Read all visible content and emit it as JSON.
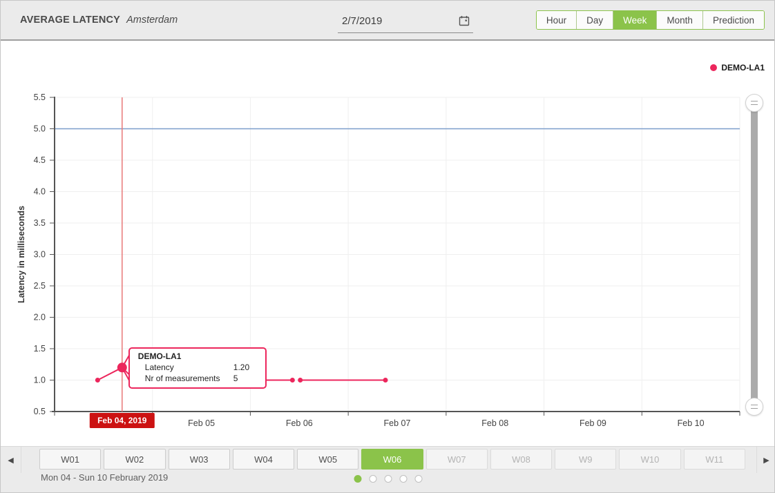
{
  "header": {
    "title": "AVERAGE LATENCY",
    "subtitle": "Amsterdam",
    "date_value": "2/7/2019",
    "range_buttons": [
      "Hour",
      "Day",
      "Week",
      "Month",
      "Prediction"
    ],
    "selected_range": "Week"
  },
  "legend": {
    "label": "DEMO-LA1",
    "marker_color": "#EC265C"
  },
  "tooltip": {
    "title": "DEMO-LA1",
    "rows": [
      {
        "label": "Latency",
        "value": "1.20"
      },
      {
        "label": "Nr of measurements",
        "value": "5"
      }
    ]
  },
  "chart_data": {
    "type": "line",
    "title": "AVERAGE LATENCY Amsterdam",
    "xlabel": "",
    "ylabel": "Latency in milliseconds",
    "ylim": [
      0.5,
      5.5
    ],
    "yticks": [
      0.5,
      1.0,
      1.5,
      2.0,
      2.5,
      3.0,
      3.5,
      4.0,
      4.5,
      5.0,
      5.5
    ],
    "x_labels": [
      "Feb 04",
      "Feb 05",
      "Feb 06",
      "Feb 07",
      "Feb 08",
      "Feb 09",
      "Feb 10"
    ],
    "x_range_days": 7,
    "grid": true,
    "legend_position": "top-right",
    "threshold_line": {
      "value": 5.0,
      "color": "#7C9DCB"
    },
    "series": [
      {
        "name": "DEMO-LA1",
        "color": "#EC265C",
        "x_unit": "days_from_Feb04",
        "segments": [
          {
            "points": [
              [
                0.44,
                1.0
              ],
              [
                0.69,
                1.2
              ],
              [
                0.82,
                1.0
              ],
              [
                2.43,
                1.0
              ]
            ]
          },
          {
            "points": [
              [
                2.51,
                1.0
              ],
              [
                3.38,
                1.0
              ]
            ]
          }
        ],
        "markers": [
          [
            0.44,
            1.0
          ],
          [
            2.43,
            1.0
          ],
          [
            2.51,
            1.0
          ],
          [
            3.38,
            1.0
          ]
        ],
        "hovered_point": {
          "x": 0.69,
          "y": 1.2,
          "latency": "1.20",
          "nr_of_measurements": "5"
        }
      }
    ],
    "crosshair": {
      "x": 0.69,
      "label": "Feb 04, 2019",
      "line_color": "#E87878",
      "label_bg": "#CC1212",
      "label_color": "#FFFFFF"
    }
  },
  "week_nav": {
    "weeks": [
      {
        "label": "W01",
        "selected": false,
        "enabled": true
      },
      {
        "label": "W02",
        "selected": false,
        "enabled": true
      },
      {
        "label": "W03",
        "selected": false,
        "enabled": true
      },
      {
        "label": "W04",
        "selected": false,
        "enabled": true
      },
      {
        "label": "W05",
        "selected": false,
        "enabled": true
      },
      {
        "label": "W06",
        "selected": true,
        "enabled": true
      },
      {
        "label": "W07",
        "selected": false,
        "enabled": false
      },
      {
        "label": "W08",
        "selected": false,
        "enabled": false
      },
      {
        "label": "W9",
        "selected": false,
        "enabled": false
      },
      {
        "label": "W10",
        "selected": false,
        "enabled": false
      },
      {
        "label": "W11",
        "selected": false,
        "enabled": false
      }
    ],
    "range_label": "Mon 04 - Sun 10 February 2019",
    "pagination": {
      "count": 5,
      "active_index": 0
    }
  },
  "icons": {
    "prev_arrow": "◀",
    "next_arrow": "▶"
  },
  "colors": {
    "accent_green": "#8BC34A",
    "series_pink": "#EC265C",
    "header_bg": "#EBEBEB"
  }
}
